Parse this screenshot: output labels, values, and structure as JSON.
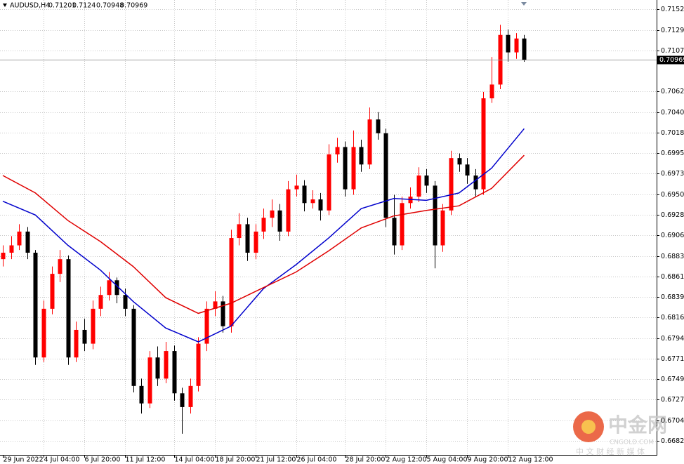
{
  "chart_data": {
    "type": "candlestick",
    "symbol": "AUDUSD,H4",
    "categories": [
      "29 Jun 2022",
      null,
      null,
      null,
      null,
      "4 Jul 04:00",
      null,
      null,
      null,
      null,
      "6 Jul 20:00",
      null,
      null,
      null,
      null,
      "11 Jul 12:00",
      null,
      null,
      null,
      null,
      null,
      "14 Jul 04:00",
      null,
      null,
      null,
      null,
      "18 Jul 20:00",
      null,
      null,
      null,
      null,
      "21 Jul 12:00",
      null,
      null,
      null,
      null,
      "26 Jul 04:00",
      null,
      null,
      null,
      null,
      null,
      "28 Jul 20:00",
      null,
      null,
      null,
      null,
      "2 Aug 12:00",
      null,
      null,
      null,
      null,
      "5 Aug 04:00",
      null,
      null,
      null,
      null,
      "9 Aug 20:00",
      null,
      null,
      null,
      null,
      "12 Aug 12:00",
      null,
      null
    ],
    "ohlc": [
      [
        0.688,
        0.6895,
        0.6872,
        0.6887
      ],
      [
        0.6887,
        0.6905,
        0.688,
        0.6895
      ],
      [
        0.6895,
        0.6918,
        0.689,
        0.691
      ],
      [
        0.691,
        0.6915,
        0.688,
        0.6887
      ],
      [
        0.6887,
        0.689,
        0.6765,
        0.6773
      ],
      [
        0.6773,
        0.6835,
        0.6768,
        0.6826
      ],
      [
        0.6826,
        0.6872,
        0.682,
        0.6864
      ],
      [
        0.6864,
        0.689,
        0.6855,
        0.688
      ],
      [
        0.688,
        0.6884,
        0.6765,
        0.6773
      ],
      [
        0.6773,
        0.6812,
        0.6768,
        0.6803
      ],
      [
        0.6803,
        0.6815,
        0.678,
        0.6788
      ],
      [
        0.6788,
        0.6835,
        0.6782,
        0.6826
      ],
      [
        0.6826,
        0.685,
        0.6818,
        0.6841
      ],
      [
        0.6841,
        0.6866,
        0.6835,
        0.6857
      ],
      [
        0.6857,
        0.686,
        0.6832,
        0.6841
      ],
      [
        0.6841,
        0.6848,
        0.6818,
        0.6826
      ],
      [
        0.6826,
        0.683,
        0.6735,
        0.6742
      ],
      [
        0.6742,
        0.675,
        0.6712,
        0.6723
      ],
      [
        0.6723,
        0.678,
        0.6718,
        0.6773
      ],
      [
        0.6773,
        0.6785,
        0.6742,
        0.675
      ],
      [
        0.675,
        0.679,
        0.6745,
        0.678
      ],
      [
        0.678,
        0.6786,
        0.6726,
        0.6734
      ],
      [
        0.6734,
        0.674,
        0.669,
        0.6719
      ],
      [
        0.6719,
        0.675,
        0.6712,
        0.6742
      ],
      [
        0.6742,
        0.6795,
        0.6736,
        0.6788
      ],
      [
        0.6788,
        0.6834,
        0.678,
        0.6826
      ],
      [
        0.6826,
        0.6845,
        0.6818,
        0.6834
      ],
      [
        0.6834,
        0.684,
        0.68,
        0.6807
      ],
      [
        0.6807,
        0.6912,
        0.68,
        0.6903
      ],
      [
        0.6903,
        0.693,
        0.6895,
        0.6918
      ],
      [
        0.6918,
        0.6925,
        0.6878,
        0.6887
      ],
      [
        0.6887,
        0.6918,
        0.688,
        0.691
      ],
      [
        0.691,
        0.6935,
        0.6902,
        0.6925
      ],
      [
        0.6925,
        0.6945,
        0.6915,
        0.6933
      ],
      [
        0.6933,
        0.694,
        0.69,
        0.691
      ],
      [
        0.691,
        0.6965,
        0.6905,
        0.6956
      ],
      [
        0.6956,
        0.6972,
        0.6948,
        0.696
      ],
      [
        0.696,
        0.6966,
        0.6932,
        0.6941
      ],
      [
        0.6941,
        0.6955,
        0.6935,
        0.6945
      ],
      [
        0.6945,
        0.6952,
        0.6922,
        0.6933
      ],
      [
        0.6933,
        0.7005,
        0.6928,
        0.6994
      ],
      [
        0.6994,
        0.7012,
        0.6985,
        0.7002
      ],
      [
        0.7002,
        0.7008,
        0.6948,
        0.6956
      ],
      [
        0.6956,
        0.702,
        0.695,
        0.7002
      ],
      [
        0.7002,
        0.701,
        0.6975,
        0.6983
      ],
      [
        0.6983,
        0.7045,
        0.6978,
        0.7032
      ],
      [
        0.7032,
        0.704,
        0.701,
        0.7017
      ],
      [
        0.7017,
        0.7022,
        0.6915,
        0.6925
      ],
      [
        0.6925,
        0.695,
        0.6885,
        0.6895
      ],
      [
        0.6895,
        0.6948,
        0.689,
        0.6941
      ],
      [
        0.6941,
        0.6958,
        0.6935,
        0.6948
      ],
      [
        0.6948,
        0.698,
        0.6942,
        0.6971
      ],
      [
        0.6971,
        0.6978,
        0.6952,
        0.696
      ],
      [
        0.696,
        0.6965,
        0.687,
        0.6895
      ],
      [
        0.6895,
        0.694,
        0.6888,
        0.6933
      ],
      [
        0.6933,
        0.6998,
        0.6928,
        0.699
      ],
      [
        0.699,
        0.6995,
        0.6975,
        0.6983
      ],
      [
        0.6983,
        0.699,
        0.6962,
        0.6971
      ],
      [
        0.6971,
        0.6978,
        0.6948,
        0.6956
      ],
      [
        0.6956,
        0.7062,
        0.695,
        0.7055
      ],
      [
        0.7055,
        0.71,
        0.705,
        0.707
      ],
      [
        0.707,
        0.7135,
        0.7065,
        0.7124
      ],
      [
        0.7124,
        0.713,
        0.7095,
        0.7105
      ],
      [
        0.7105,
        0.7126,
        0.7098,
        0.71201
      ],
      [
        0.71201,
        0.7124,
        0.70948,
        0.70969
      ]
    ],
    "up_color": "#ff0000",
    "down_color": "#000000",
    "series": [
      {
        "color": "#0000cc",
        "x": [
          0,
          4,
          8,
          12,
          16,
          20,
          24,
          28,
          32,
          36,
          40,
          44,
          48,
          52,
          56,
          60,
          64
        ],
        "values": [
          0.6943,
          0.6928,
          0.6895,
          0.6868,
          0.6834,
          0.6805,
          0.679,
          0.6807,
          0.6848,
          0.6874,
          0.6903,
          0.6935,
          0.6946,
          0.6944,
          0.6952,
          0.6979,
          0.7022
        ]
      },
      {
        "color": "#e00000",
        "x": [
          0,
          4,
          8,
          12,
          16,
          20,
          24,
          28,
          32,
          36,
          40,
          44,
          48,
          52,
          56,
          60,
          64
        ],
        "values": [
          0.6971,
          0.6952,
          0.6922,
          0.6899,
          0.6872,
          0.6838,
          0.6821,
          0.6832,
          0.6849,
          0.6866,
          0.6889,
          0.6914,
          0.6927,
          0.6933,
          0.6938,
          0.6957,
          0.6993
        ]
      }
    ],
    "ylim": [
      0.6667,
      0.7162
    ],
    "yticks": [
      {
        "value": 0.7152,
        "label": "0.71520"
      },
      {
        "value": 0.71295,
        "label": "0.71295"
      },
      {
        "value": 0.7107,
        "label": "0.71070"
      },
      {
        "value": 0.70625,
        "label": "0.70625"
      },
      {
        "value": 0.704,
        "label": "0.70400"
      },
      {
        "value": 0.7018,
        "label": "0.70180"
      },
      {
        "value": 0.69955,
        "label": "0.69955"
      },
      {
        "value": 0.6973,
        "label": "0.69730"
      },
      {
        "value": 0.69505,
        "label": "0.69505"
      },
      {
        "value": 0.69285,
        "label": "0.69285"
      },
      {
        "value": 0.6906,
        "label": "0.69060"
      },
      {
        "value": 0.68835,
        "label": "0.68835"
      },
      {
        "value": 0.6861,
        "label": "0.68610"
      },
      {
        "value": 0.6839,
        "label": "0.68390"
      },
      {
        "value": 0.68165,
        "label": "0.68165"
      },
      {
        "value": 0.6794,
        "label": "0.67940"
      },
      {
        "value": 0.67715,
        "label": "0.67715"
      },
      {
        "value": 0.67495,
        "label": "0.67495"
      },
      {
        "value": 0.6727,
        "label": "0.67270"
      },
      {
        "value": 0.67045,
        "label": "0.67045"
      },
      {
        "value": 0.6682,
        "label": "0.66820"
      }
    ],
    "grid": true,
    "watermark": {
      "title": "中金网",
      "site": "CNGOLD.COM",
      "tagline": "中 文 财 经 新 媒 体"
    }
  }
}
